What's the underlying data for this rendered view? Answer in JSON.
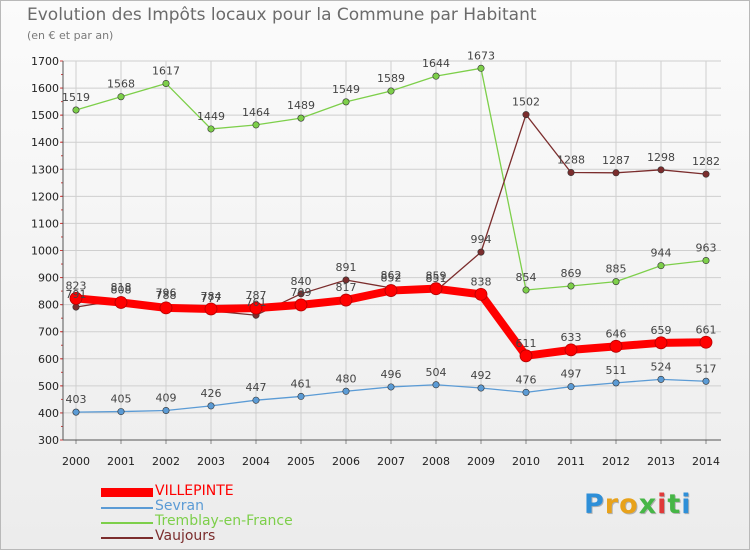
{
  "chart_data": {
    "type": "line",
    "title": "Evolution des Impôts locaux pour la Commune par Habitant",
    "subtitle": "(en € et par an)",
    "xlabel": "",
    "ylabel": "",
    "ylim": [
      300,
      1700
    ],
    "yticks": [
      300,
      400,
      500,
      600,
      700,
      800,
      900,
      1000,
      1100,
      1200,
      1300,
      1400,
      1500,
      1600,
      1700
    ],
    "categories": [
      "2000",
      "2001",
      "2002",
      "2003",
      "2004",
      "2005",
      "2006",
      "2007",
      "2008",
      "2009",
      "2010",
      "2011",
      "2012",
      "2013",
      "2014"
    ],
    "grid": true,
    "legend_position": "bottom-left",
    "series": [
      {
        "name": "VILLEPINTE",
        "color": "#ff0000",
        "style": "thick",
        "values": [
          823,
          808,
          788,
          784,
          787,
          799,
          817,
          852,
          859,
          838,
          611,
          633,
          646,
          659,
          661
        ]
      },
      {
        "name": "Sevran",
        "color": "#5b9bd5",
        "style": "thin",
        "values": [
          403,
          405,
          409,
          426,
          447,
          461,
          480,
          496,
          504,
          492,
          476,
          497,
          511,
          524,
          517
        ]
      },
      {
        "name": "Tremblay-en-France",
        "color": "#7dcf4a",
        "style": "thin",
        "values": [
          1519,
          1568,
          1617,
          1449,
          1464,
          1489,
          1549,
          1589,
          1644,
          1673,
          854,
          869,
          885,
          944,
          963
        ]
      },
      {
        "name": "Vaujours",
        "color": "#7b2d2d",
        "style": "thin",
        "values": [
          791,
          818,
          796,
          777,
          761,
          840,
          891,
          862,
          851,
          994,
          1502,
          1288,
          1287,
          1298,
          1282
        ]
      }
    ]
  },
  "branding": {
    "logo_letters": [
      {
        "ch": "P",
        "color": "#2e8fd8"
      },
      {
        "ch": "r",
        "color": "#e8a21a"
      },
      {
        "ch": "o",
        "color": "#e8a21a"
      },
      {
        "ch": "x",
        "color": "#46b646"
      },
      {
        "ch": "i",
        "color": "#e03a3a"
      },
      {
        "ch": "t",
        "color": "#46b646"
      },
      {
        "ch": "i",
        "color": "#2e8fd8"
      }
    ]
  }
}
